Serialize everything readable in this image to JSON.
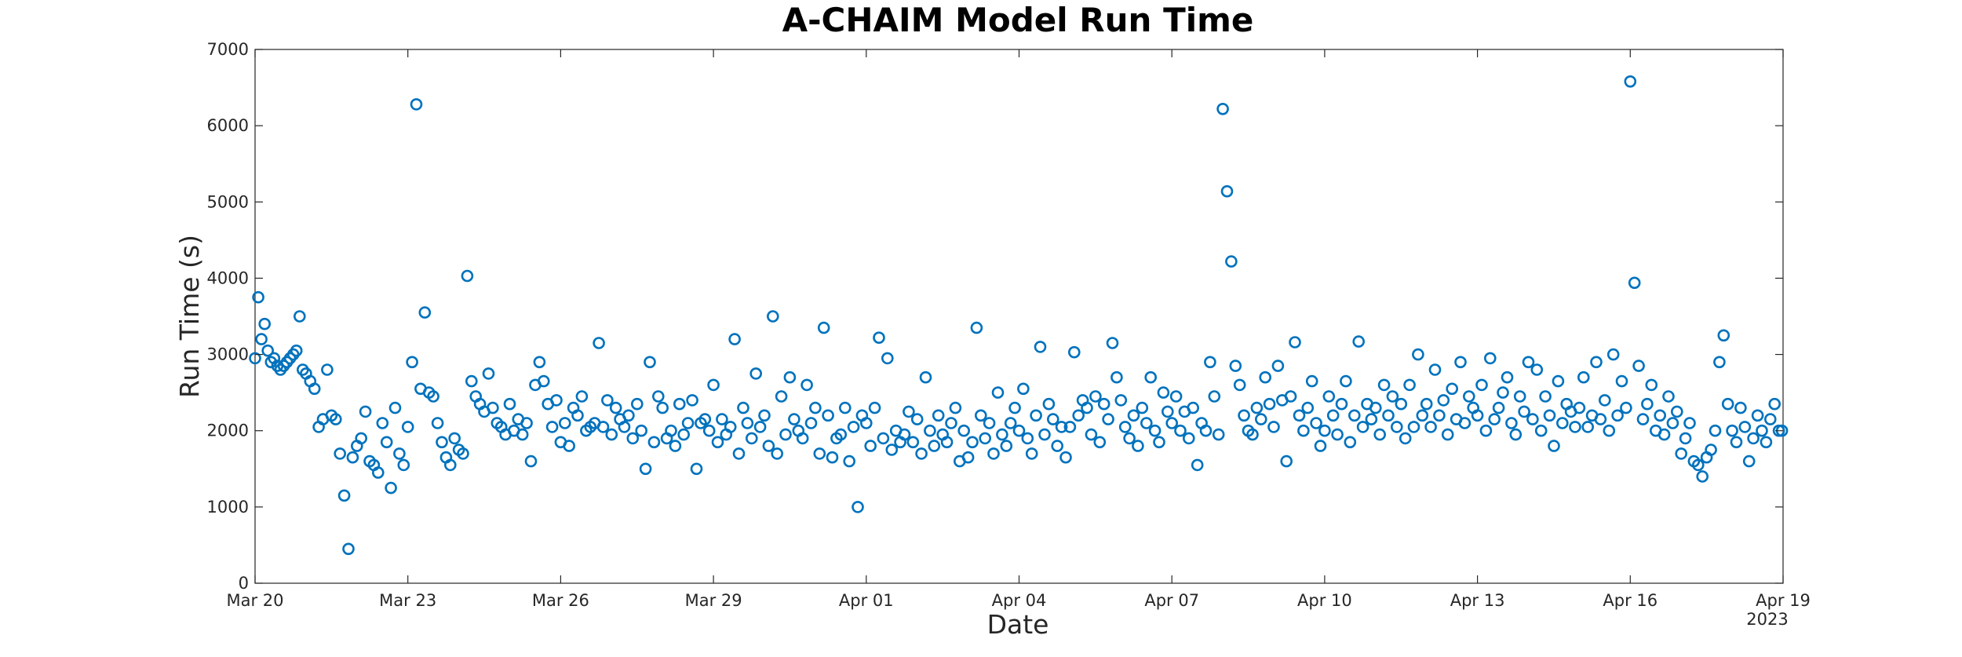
{
  "chart_data": {
    "type": "scatter",
    "title": "A-CHAIM Model Run Time",
    "xlabel": "Date",
    "ylabel": "Run Time (s)",
    "x_secondary_label": "2023",
    "xlim": [
      "2023-03-20",
      "2023-04-19"
    ],
    "ylim": [
      0,
      7000
    ],
    "x_ticks": [
      {
        "date": "2023-03-20",
        "label": "Mar 20"
      },
      {
        "date": "2023-03-23",
        "label": "Mar 23"
      },
      {
        "date": "2023-03-26",
        "label": "Mar 26"
      },
      {
        "date": "2023-03-29",
        "label": "Mar 29"
      },
      {
        "date": "2023-04-01",
        "label": "Apr 01"
      },
      {
        "date": "2023-04-04",
        "label": "Apr 04"
      },
      {
        "date": "2023-04-07",
        "label": "Apr 07"
      },
      {
        "date": "2023-04-10",
        "label": "Apr 10"
      },
      {
        "date": "2023-04-13",
        "label": "Apr 13"
      },
      {
        "date": "2023-04-16",
        "label": "Apr 16"
      },
      {
        "date": "2023-04-19",
        "label": "Apr 19"
      }
    ],
    "y_ticks": [
      0,
      1000,
      2000,
      3000,
      4000,
      5000,
      6000,
      7000
    ],
    "grid": false,
    "marker": "open-circle",
    "color": "#0072BD",
    "series": [
      {
        "x": [
          "2023-03-20T00:00",
          "2023-03-20T01:30",
          "2023-03-20T03:00",
          "2023-03-20T04:30",
          "2023-03-20T06:00",
          "2023-03-20T07:30",
          "2023-03-20T09:00",
          "2023-03-20T10:30",
          "2023-03-20T12:00",
          "2023-03-20T13:30",
          "2023-03-20T15:00",
          "2023-03-20T16:30",
          "2023-03-20T18:00",
          "2023-03-20T19:30",
          "2023-03-20T21:00",
          "2023-03-20T22:30",
          "2023-03-21T00:00",
          "2023-03-21T02:00",
          "2023-03-21T04:00",
          "2023-03-21T06:00",
          "2023-03-21T08:00",
          "2023-03-21T10:00",
          "2023-03-21T12:00",
          "2023-03-21T14:00",
          "2023-03-21T16:00",
          "2023-03-21T18:00",
          "2023-03-21T20:00",
          "2023-03-21T22:00",
          "2023-03-22T00:00",
          "2023-03-22T02:00",
          "2023-03-22T04:00",
          "2023-03-22T06:00",
          "2023-03-22T08:00",
          "2023-03-22T10:00",
          "2023-03-22T12:00",
          "2023-03-22T14:00",
          "2023-03-22T16:00",
          "2023-03-22T18:00",
          "2023-03-22T20:00",
          "2023-03-22T22:00",
          "2023-03-23T00:00",
          "2023-03-23T02:00",
          "2023-03-23T04:00",
          "2023-03-23T06:00",
          "2023-03-23T08:00",
          "2023-03-23T10:00",
          "2023-03-23T12:00",
          "2023-03-23T14:00",
          "2023-03-23T16:00",
          "2023-03-23T18:00",
          "2023-03-23T20:00",
          "2023-03-23T22:00",
          "2023-03-24T00:00",
          "2023-03-24T02:00",
          "2023-03-24T04:00",
          "2023-03-24T06:00",
          "2023-03-24T08:00",
          "2023-03-24T10:00",
          "2023-03-24T12:00",
          "2023-03-24T14:00",
          "2023-03-24T16:00",
          "2023-03-24T18:00",
          "2023-03-24T20:00",
          "2023-03-24T22:00",
          "2023-03-25T00:00",
          "2023-03-25T02:00",
          "2023-03-25T04:00",
          "2023-03-25T06:00",
          "2023-03-25T08:00",
          "2023-03-25T10:00",
          "2023-03-25T12:00",
          "2023-03-25T14:00",
          "2023-03-25T16:00",
          "2023-03-25T18:00",
          "2023-03-25T20:00",
          "2023-03-25T22:00",
          "2023-03-26T00:00",
          "2023-03-26T02:00",
          "2023-03-26T04:00",
          "2023-03-26T06:00",
          "2023-03-26T08:00",
          "2023-03-26T10:00",
          "2023-03-26T12:00",
          "2023-03-26T14:00",
          "2023-03-26T16:00",
          "2023-03-26T18:00",
          "2023-03-26T20:00",
          "2023-03-26T22:00",
          "2023-03-27T00:00",
          "2023-03-27T02:00",
          "2023-03-27T04:00",
          "2023-03-27T06:00",
          "2023-03-27T08:00",
          "2023-03-27T10:00",
          "2023-03-27T12:00",
          "2023-03-27T14:00",
          "2023-03-27T16:00",
          "2023-03-27T18:00",
          "2023-03-27T20:00",
          "2023-03-27T22:00",
          "2023-03-28T00:00",
          "2023-03-28T02:00",
          "2023-03-28T04:00",
          "2023-03-28T06:00",
          "2023-03-28T08:00",
          "2023-03-28T10:00",
          "2023-03-28T12:00",
          "2023-03-28T14:00",
          "2023-03-28T16:00",
          "2023-03-28T18:00",
          "2023-03-28T20:00",
          "2023-03-28T22:00",
          "2023-03-29T00:00",
          "2023-03-29T02:00",
          "2023-03-29T04:00",
          "2023-03-29T06:00",
          "2023-03-29T08:00",
          "2023-03-29T10:00",
          "2023-03-29T12:00",
          "2023-03-29T14:00",
          "2023-03-29T16:00",
          "2023-03-29T18:00",
          "2023-03-29T20:00",
          "2023-03-29T22:00",
          "2023-03-30T00:00",
          "2023-03-30T02:00",
          "2023-03-30T04:00",
          "2023-03-30T06:00",
          "2023-03-30T08:00",
          "2023-03-30T10:00",
          "2023-03-30T12:00",
          "2023-03-30T14:00",
          "2023-03-30T16:00",
          "2023-03-30T18:00",
          "2023-03-30T20:00",
          "2023-03-30T22:00",
          "2023-03-31T00:00",
          "2023-03-31T02:00",
          "2023-03-31T04:00",
          "2023-03-31T06:00",
          "2023-03-31T08:00",
          "2023-03-31T10:00",
          "2023-03-31T12:00",
          "2023-03-31T14:00",
          "2023-03-31T16:00",
          "2023-03-31T18:00",
          "2023-03-31T20:00",
          "2023-03-31T22:00",
          "2023-04-01T00:00",
          "2023-04-01T02:00",
          "2023-04-01T04:00",
          "2023-04-01T06:00",
          "2023-04-01T08:00",
          "2023-04-01T10:00",
          "2023-04-01T12:00",
          "2023-04-01T14:00",
          "2023-04-01T16:00",
          "2023-04-01T18:00",
          "2023-04-01T20:00",
          "2023-04-01T22:00",
          "2023-04-02T00:00",
          "2023-04-02T02:00",
          "2023-04-02T04:00",
          "2023-04-02T06:00",
          "2023-04-02T08:00",
          "2023-04-02T10:00",
          "2023-04-02T12:00",
          "2023-04-02T14:00",
          "2023-04-02T16:00",
          "2023-04-02T18:00",
          "2023-04-02T20:00",
          "2023-04-02T22:00",
          "2023-04-03T00:00",
          "2023-04-03T02:00",
          "2023-04-03T04:00",
          "2023-04-03T06:00",
          "2023-04-03T08:00",
          "2023-04-03T10:00",
          "2023-04-03T12:00",
          "2023-04-03T14:00",
          "2023-04-03T16:00",
          "2023-04-03T18:00",
          "2023-04-03T20:00",
          "2023-04-03T22:00",
          "2023-04-04T00:00",
          "2023-04-04T02:00",
          "2023-04-04T04:00",
          "2023-04-04T06:00",
          "2023-04-04T08:00",
          "2023-04-04T10:00",
          "2023-04-04T12:00",
          "2023-04-04T14:00",
          "2023-04-04T16:00",
          "2023-04-04T18:00",
          "2023-04-04T20:00",
          "2023-04-04T22:00",
          "2023-04-05T00:00",
          "2023-04-05T02:00",
          "2023-04-05T04:00",
          "2023-04-05T06:00",
          "2023-04-05T08:00",
          "2023-04-05T10:00",
          "2023-04-05T12:00",
          "2023-04-05T14:00",
          "2023-04-05T16:00",
          "2023-04-05T18:00",
          "2023-04-05T20:00",
          "2023-04-05T22:00",
          "2023-04-06T00:00",
          "2023-04-06T02:00",
          "2023-04-06T04:00",
          "2023-04-06T06:00",
          "2023-04-06T08:00",
          "2023-04-06T10:00",
          "2023-04-06T12:00",
          "2023-04-06T14:00",
          "2023-04-06T16:00",
          "2023-04-06T18:00",
          "2023-04-06T20:00",
          "2023-04-06T22:00",
          "2023-04-07T00:00",
          "2023-04-07T02:00",
          "2023-04-07T04:00",
          "2023-04-07T06:00",
          "2023-04-07T08:00",
          "2023-04-07T10:00",
          "2023-04-07T12:00",
          "2023-04-07T14:00",
          "2023-04-07T16:00",
          "2023-04-07T18:00",
          "2023-04-07T20:00",
          "2023-04-07T22:00",
          "2023-04-08T00:00",
          "2023-04-08T02:00",
          "2023-04-08T04:00",
          "2023-04-08T06:00",
          "2023-04-08T08:00",
          "2023-04-08T10:00",
          "2023-04-08T12:00",
          "2023-04-08T14:00",
          "2023-04-08T16:00",
          "2023-04-08T18:00",
          "2023-04-08T20:00",
          "2023-04-08T22:00",
          "2023-04-09T00:00",
          "2023-04-09T02:00",
          "2023-04-09T04:00",
          "2023-04-09T06:00",
          "2023-04-09T08:00",
          "2023-04-09T10:00",
          "2023-04-09T12:00",
          "2023-04-09T14:00",
          "2023-04-09T16:00",
          "2023-04-09T18:00",
          "2023-04-09T20:00",
          "2023-04-09T22:00",
          "2023-04-10T00:00",
          "2023-04-10T02:00",
          "2023-04-10T04:00",
          "2023-04-10T06:00",
          "2023-04-10T08:00",
          "2023-04-10T10:00",
          "2023-04-10T12:00",
          "2023-04-10T14:00",
          "2023-04-10T16:00",
          "2023-04-10T18:00",
          "2023-04-10T20:00",
          "2023-04-10T22:00",
          "2023-04-11T00:00",
          "2023-04-11T02:00",
          "2023-04-11T04:00",
          "2023-04-11T06:00",
          "2023-04-11T08:00",
          "2023-04-11T10:00",
          "2023-04-11T12:00",
          "2023-04-11T14:00",
          "2023-04-11T16:00",
          "2023-04-11T18:00",
          "2023-04-11T20:00",
          "2023-04-11T22:00",
          "2023-04-12T00:00",
          "2023-04-12T02:00",
          "2023-04-12T04:00",
          "2023-04-12T06:00",
          "2023-04-12T08:00",
          "2023-04-12T10:00",
          "2023-04-12T12:00",
          "2023-04-12T14:00",
          "2023-04-12T16:00",
          "2023-04-12T18:00",
          "2023-04-12T20:00",
          "2023-04-12T22:00",
          "2023-04-13T00:00",
          "2023-04-13T02:00",
          "2023-04-13T04:00",
          "2023-04-13T06:00",
          "2023-04-13T08:00",
          "2023-04-13T10:00",
          "2023-04-13T12:00",
          "2023-04-13T14:00",
          "2023-04-13T16:00",
          "2023-04-13T18:00",
          "2023-04-13T20:00",
          "2023-04-13T22:00",
          "2023-04-14T00:00",
          "2023-04-14T02:00",
          "2023-04-14T04:00",
          "2023-04-14T06:00",
          "2023-04-14T08:00",
          "2023-04-14T10:00",
          "2023-04-14T12:00",
          "2023-04-14T14:00",
          "2023-04-14T16:00",
          "2023-04-14T18:00",
          "2023-04-14T20:00",
          "2023-04-14T22:00",
          "2023-04-15T00:00",
          "2023-04-15T02:00",
          "2023-04-15T04:00",
          "2023-04-15T06:00",
          "2023-04-15T08:00",
          "2023-04-15T10:00",
          "2023-04-15T12:00",
          "2023-04-15T14:00",
          "2023-04-15T16:00",
          "2023-04-15T18:00",
          "2023-04-15T20:00",
          "2023-04-15T22:00",
          "2023-04-16T00:00",
          "2023-04-16T02:00",
          "2023-04-16T04:00",
          "2023-04-16T06:00",
          "2023-04-16T08:00",
          "2023-04-16T10:00",
          "2023-04-16T12:00",
          "2023-04-16T14:00",
          "2023-04-16T16:00",
          "2023-04-16T18:00",
          "2023-04-16T20:00",
          "2023-04-16T22:00",
          "2023-04-17T00:00",
          "2023-04-17T02:00",
          "2023-04-17T04:00",
          "2023-04-17T06:00",
          "2023-04-17T08:00",
          "2023-04-17T10:00",
          "2023-04-17T12:00",
          "2023-04-17T14:00",
          "2023-04-17T16:00",
          "2023-04-17T18:00",
          "2023-04-17T20:00",
          "2023-04-17T22:00",
          "2023-04-18T00:00",
          "2023-04-18T02:00",
          "2023-04-18T04:00",
          "2023-04-18T06:00",
          "2023-04-18T08:00",
          "2023-04-18T10:00",
          "2023-04-18T12:00",
          "2023-04-18T14:00",
          "2023-04-18T16:00",
          "2023-04-18T18:00",
          "2023-04-18T20:00",
          "2023-04-18T22:00",
          "2023-04-18T23:30"
        ],
        "y": [
          2950,
          3750,
          3200,
          3400,
          3050,
          2900,
          2950,
          2850,
          2800,
          2850,
          2900,
          2950,
          3000,
          3050,
          3500,
          2800,
          2750,
          2650,
          2550,
          2050,
          2150,
          2800,
          2200,
          2150,
          1700,
          1150,
          450,
          1650,
          1800,
          1900,
          2250,
          1600,
          1550,
          1450,
          2100,
          1850,
          1250,
          2300,
          1700,
          1550,
          2050,
          2900,
          6280,
          2550,
          3550,
          2500,
          2450,
          2100,
          1850,
          1650,
          1550,
          1900,
          1750,
          1700,
          4030,
          2650,
          2450,
          2350,
          2250,
          2750,
          2300,
          2100,
          2050,
          1950,
          2350,
          2000,
          2150,
          1950,
          2100,
          1600,
          2600,
          2900,
          2650,
          2350,
          2050,
          2400,
          1850,
          2100,
          1800,
          2300,
          2200,
          2450,
          2000,
          2050,
          2100,
          3150,
          2050,
          2400,
          1950,
          2300,
          2150,
          2050,
          2200,
          1900,
          2350,
          2000,
          1500,
          2900,
          1850,
          2450,
          2300,
          1900,
          2000,
          1800,
          2350,
          1950,
          2100,
          2400,
          1500,
          2100,
          2150,
          2000,
          2600,
          1850,
          2150,
          1950,
          2050,
          3200,
          1700,
          2300,
          2100,
          1900,
          2750,
          2050,
          2200,
          1800,
          3500,
          1700,
          2450,
          1950,
          2700,
          2150,
          2000,
          1900,
          2600,
          2100,
          2300,
          1700,
          3350,
          2200,
          1650,
          1900,
          1950,
          2300,
          1600,
          2050,
          1000,
          2200,
          2100,
          1800,
          2300,
          3220,
          1900,
          2950,
          1750,
          2000,
          1850,
          1950,
          2250,
          1850,
          2150,
          1700,
          2700,
          2000,
          1800,
          2200,
          1950,
          1850,
          2100,
          2300,
          1600,
          2000,
          1650,
          1850,
          3350,
          2200,
          1900,
          2100,
          1700,
          2500,
          1950,
          1800,
          2100,
          2300,
          2000,
          2550,
          1900,
          1700,
          2200,
          3100,
          1950,
          2350,
          2150,
          1800,
          2050,
          1650,
          2050,
          3030,
          2200,
          2400,
          2300,
          1950,
          2450,
          1850,
          2350,
          2150,
          3150,
          2700,
          2400,
          2050,
          1900,
          2200,
          1800,
          2300,
          2100,
          2700,
          2000,
          1850,
          2500,
          2250,
          2100,
          2450,
          2000,
          2250,
          1900,
          2300,
          1550,
          2100,
          2000,
          2900,
          2450,
          1950,
          6220,
          5140,
          4220,
          2850,
          2600,
          2200,
          2000,
          1950,
          2300,
          2150,
          2700,
          2350,
          2050,
          2850,
          2400,
          1600,
          2450,
          3160,
          2200,
          2000,
          2300,
          2650,
          2100,
          1800,
          2000,
          2450,
          2200,
          1950,
          2350,
          2650,
          1850,
          2200,
          3170,
          2050,
          2350,
          2150,
          2300,
          1950,
          2600,
          2200,
          2450,
          2050,
          2350,
          1900,
          2600,
          2050,
          3000,
          2200,
          2350,
          2050,
          2800,
          2200,
          2400,
          1950,
          2550,
          2150,
          2900,
          2100,
          2450,
          2300,
          2200,
          2600,
          2000,
          2950,
          2150,
          2300,
          2500,
          2700,
          2100,
          1950,
          2450,
          2250,
          2900,
          2150,
          2800,
          2000,
          2450,
          2200,
          1800,
          2650,
          2100,
          2350,
          2250,
          2050,
          2300,
          2700,
          2050,
          2200,
          2900,
          2150,
          2400,
          2000,
          3000,
          2200,
          2650,
          2300,
          6580,
          3940,
          2850,
          2150,
          2350,
          2600,
          2000,
          2200,
          1950,
          2450,
          2100,
          2250,
          1700,
          1900,
          2100,
          1600,
          1550,
          1400,
          1650,
          1750,
          2000,
          2900,
          3250,
          2350,
          2000,
          1850,
          2300,
          2050,
          1600,
          1900,
          2200,
          2000,
          1850,
          2150,
          2350,
          2000,
          2000
        ]
      }
    ]
  }
}
